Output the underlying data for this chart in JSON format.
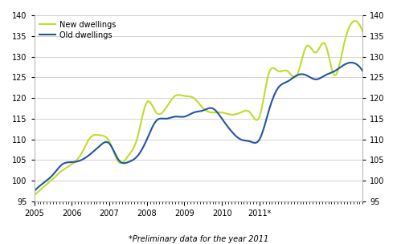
{
  "new_dwellings_quarterly": [
    96.5,
    98.5,
    100.5,
    102.5,
    104.0,
    106.5,
    110.5,
    111.0,
    109.5,
    104.5,
    106.0,
    110.5,
    119.0,
    116.5,
    117.5,
    120.5,
    120.5,
    120.0,
    117.5,
    116.5,
    116.5,
    116.0,
    116.5,
    116.5,
    115.5,
    126.0,
    126.5,
    126.5,
    125.5,
    132.5,
    131.0,
    133.0,
    125.5,
    133.0,
    138.5,
    136.0
  ],
  "old_dwellings_quarterly": [
    97.5,
    99.5,
    101.5,
    104.0,
    104.5,
    105.0,
    106.5,
    108.5,
    109.0,
    105.0,
    104.5,
    106.0,
    110.0,
    114.5,
    115.0,
    115.5,
    115.5,
    116.5,
    117.0,
    117.5,
    115.0,
    112.0,
    110.0,
    109.5,
    110.0,
    117.0,
    122.5,
    124.0,
    125.5,
    125.5,
    124.5,
    125.5,
    126.5,
    128.0,
    128.5,
    126.5
  ],
  "x_start": 2005.0,
  "x_step": 0.0833333,
  "ylim": [
    95,
    140
  ],
  "yticks": [
    95,
    100,
    105,
    110,
    115,
    120,
    125,
    130,
    135,
    140
  ],
  "xtick_labels": [
    "2005",
    "2006",
    "2007",
    "2008",
    "2009",
    "2010",
    "2011*"
  ],
  "xtick_positions": [
    2005,
    2006,
    2007,
    2008,
    2009,
    2010,
    2011
  ],
  "new_color": "#bedd2e",
  "old_color": "#2255a0",
  "legend_new": "New dwellings",
  "legend_old": "Old dwellings",
  "footnote": "*Preliminary data for the year 2011",
  "linewidth": 1.5,
  "grid_color": "#cccccc",
  "background_color": "#ffffff",
  "minor_tick_count": 3
}
